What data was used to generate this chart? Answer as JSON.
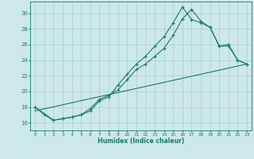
{
  "xlabel": "Humidex (Indice chaleur)",
  "xlim": [
    -0.5,
    23.5
  ],
  "ylim": [
    15.0,
    31.5
  ],
  "yticks": [
    16,
    18,
    20,
    22,
    24,
    26,
    28,
    30
  ],
  "xticks": [
    0,
    1,
    2,
    3,
    4,
    5,
    6,
    7,
    8,
    9,
    10,
    11,
    12,
    13,
    14,
    15,
    16,
    17,
    18,
    19,
    20,
    21,
    22,
    23
  ],
  "bg_color": "#cce8e8",
  "line_color": "#1a7a6e",
  "grid_color": "#aacccc",
  "line1_x": [
    0,
    1,
    2,
    3,
    4,
    5,
    6,
    7,
    8,
    9,
    10,
    11,
    12,
    13,
    14,
    15,
    16,
    17,
    18,
    19,
    20,
    21,
    22,
    23
  ],
  "line1_y": [
    18.0,
    17.0,
    16.3,
    16.5,
    16.7,
    17.0,
    17.8,
    19.0,
    19.5,
    20.2,
    21.5,
    22.8,
    23.5,
    24.5,
    25.5,
    27.2,
    29.3,
    30.5,
    29.0,
    28.2,
    25.8,
    26.0,
    24.0,
    23.5
  ],
  "line2_x": [
    0,
    2,
    3,
    4,
    5,
    6,
    7,
    8,
    9,
    10,
    11,
    12,
    13,
    14,
    15,
    16,
    17,
    18,
    19,
    20,
    21,
    22,
    23
  ],
  "line2_y": [
    18.0,
    16.3,
    16.5,
    16.7,
    17.0,
    17.5,
    18.8,
    19.3,
    20.8,
    22.2,
    23.5,
    24.5,
    25.8,
    27.0,
    28.8,
    30.8,
    29.2,
    28.8,
    28.2,
    25.8,
    25.8,
    24.0,
    23.5
  ],
  "line3_x": [
    0,
    23
  ],
  "line3_y": [
    17.5,
    23.5
  ]
}
